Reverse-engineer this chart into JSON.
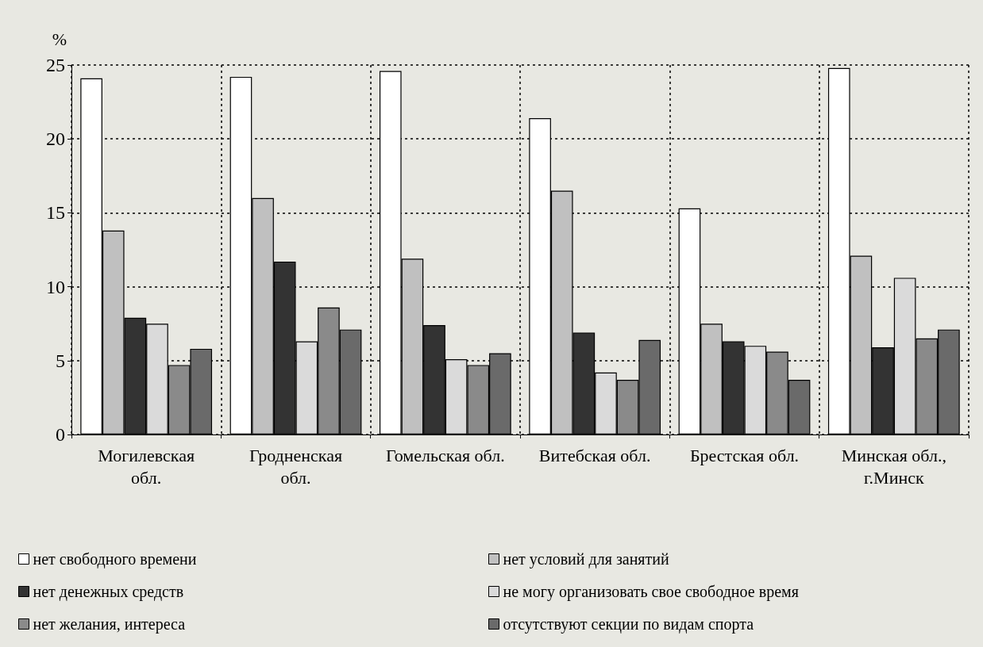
{
  "chart_data": {
    "type": "bar",
    "ylabel": "%",
    "categories": [
      "Могилевская обл.",
      "Гродненская обл.",
      "Гомельская обл.",
      "Витебская обл.",
      "Брестская обл.",
      "Минская обл., г.Минск"
    ],
    "series": [
      {
        "name": "нет свободного времени",
        "color": "#ffffff",
        "values": [
          24.1,
          24.2,
          24.6,
          21.4,
          15.3,
          24.8
        ]
      },
      {
        "name": "нет условий для занятий",
        "color": "#c0c0c0",
        "values": [
          13.8,
          16.0,
          11.9,
          16.5,
          7.5,
          12.1
        ]
      },
      {
        "name": "нет денежных средств",
        "color": "#333333",
        "values": [
          7.9,
          11.7,
          7.4,
          6.9,
          6.3,
          5.9
        ]
      },
      {
        "name": "не могу организовать свое свободное время",
        "color": "#dadada",
        "values": [
          7.5,
          6.3,
          5.1,
          4.2,
          6.0,
          10.6
        ]
      },
      {
        "name": "нет желания, интереса",
        "color": "#8a8a8a",
        "values": [
          4.7,
          8.6,
          4.7,
          3.7,
          5.6,
          6.5
        ]
      },
      {
        "name": "отсутствуют секции по видам спорта",
        "color": "#6a6a6a",
        "values": [
          5.8,
          7.1,
          5.5,
          6.4,
          3.7,
          7.1
        ]
      }
    ],
    "ylim": [
      0,
      25
    ],
    "yticks": [
      0,
      5,
      10,
      15,
      20,
      25
    ],
    "grid": true,
    "legend": "bottom"
  }
}
